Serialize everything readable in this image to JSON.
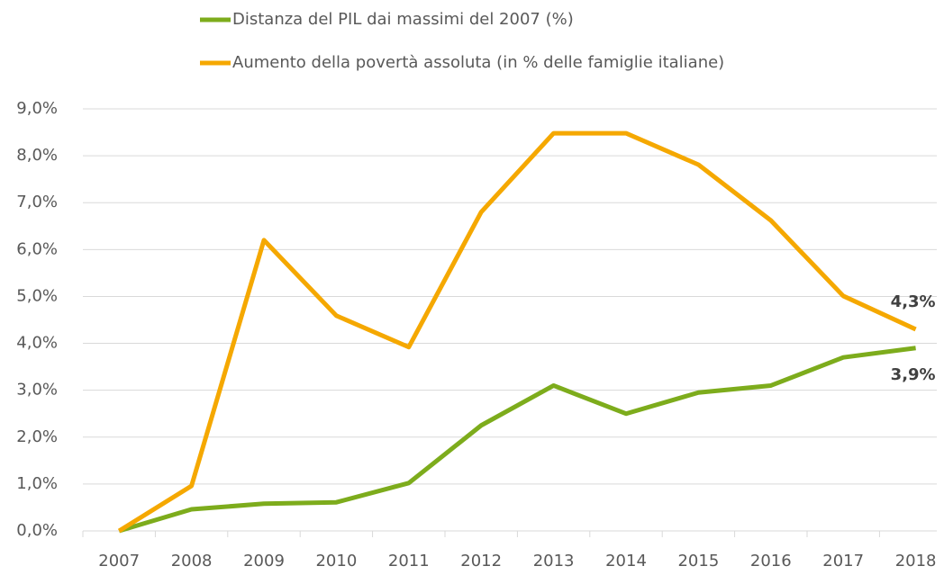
{
  "chart_data": {
    "type": "line",
    "categories": [
      "2007",
      "2008",
      "2009",
      "2010",
      "2011",
      "2012",
      "2013",
      "2014",
      "2015",
      "2016",
      "2017",
      "2018"
    ],
    "series": [
      {
        "name": "Distanza del PIL dai massimi del 2007 (%)",
        "color": "#7dac1c",
        "values": [
          0,
          0.46,
          0.58,
          0.61,
          1.02,
          2.25,
          3.1,
          2.5,
          2.95,
          3.1,
          3.7,
          3.9
        ],
        "value_labels": [
          null,
          null,
          null,
          null,
          null,
          null,
          null,
          null,
          null,
          null,
          null,
          "3,9%"
        ]
      },
      {
        "name": "Aumento della povertà assoluta (in % delle famiglie italiane)",
        "color": "#f5a800",
        "values": [
          0,
          0.96,
          6.2,
          4.59,
          3.92,
          6.8,
          8.48,
          8.48,
          7.81,
          6.62,
          5.01,
          4.3
        ],
        "value_labels": [
          null,
          null,
          null,
          null,
          null,
          null,
          null,
          null,
          null,
          null,
          null,
          "4,3%"
        ]
      }
    ],
    "ylim": [
      0,
      9
    ],
    "yticks": [
      {
        "value": 0,
        "label": "0,0%"
      },
      {
        "value": 1,
        "label": "1,0%"
      },
      {
        "value": 2,
        "label": "2,0%"
      },
      {
        "value": 3,
        "label": "3,0%"
      },
      {
        "value": 4,
        "label": "4,0%"
      },
      {
        "value": 5,
        "label": "5,0%"
      },
      {
        "value": 6,
        "label": "6,0%"
      },
      {
        "value": 7,
        "label": "7,0%"
      },
      {
        "value": 8,
        "label": "8,0%"
      },
      {
        "value": 9,
        "label": "9,0%"
      }
    ],
    "grid": true
  }
}
